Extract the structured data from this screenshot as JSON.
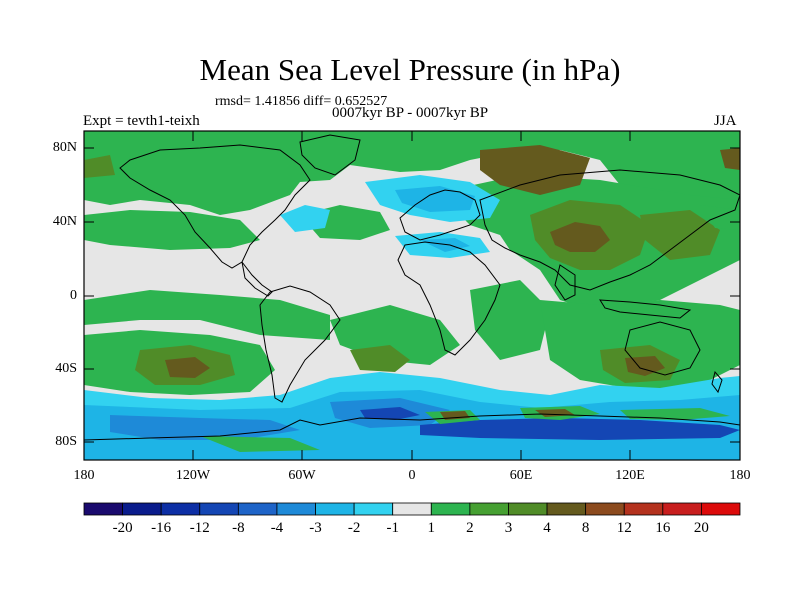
{
  "header": {
    "title": "Mean Sea Level Pressure (in hPa)",
    "stats": "rmsd= 1.41856 diff= 0.652527",
    "period": "0007kyr BP - 0007kyr BP",
    "experiment": "Expt = tevth1-teixh",
    "season": "JJA"
  },
  "axes": {
    "y_labels": [
      "80N",
      "40N",
      "0",
      "40S",
      "80S"
    ],
    "x_labels": [
      "180",
      "120W",
      "60W",
      "0",
      "60E",
      "120E",
      "180"
    ]
  },
  "colorbar": {
    "labels": [
      "-20",
      "-16",
      "-12",
      "-8",
      "-4",
      "-3",
      "-2",
      "-1",
      "1",
      "2",
      "3",
      "4",
      "8",
      "12",
      "16",
      "20"
    ],
    "colors": [
      "#1a0a6e",
      "#0a1c8c",
      "#0d2fa5",
      "#1446b4",
      "#1e64c8",
      "#1e8ad8",
      "#1eb4e6",
      "#32d2f0",
      "#e6e6e6",
      "#2db450",
      "#46a032",
      "#508c28",
      "#645a1e",
      "#8c4b1e",
      "#b4321e",
      "#c81e1e",
      "#dc0a0a"
    ]
  },
  "map": {
    "colors": {
      "neutral": "#e6e6e6",
      "green": "#2db450",
      "dark_green": "#508c28",
      "brown": "#645a1e",
      "light_cyan": "#32d2f0",
      "cyan": "#1eb4e6",
      "blue": "#1e8ad8",
      "dark_blue": "#1446b4"
    }
  }
}
